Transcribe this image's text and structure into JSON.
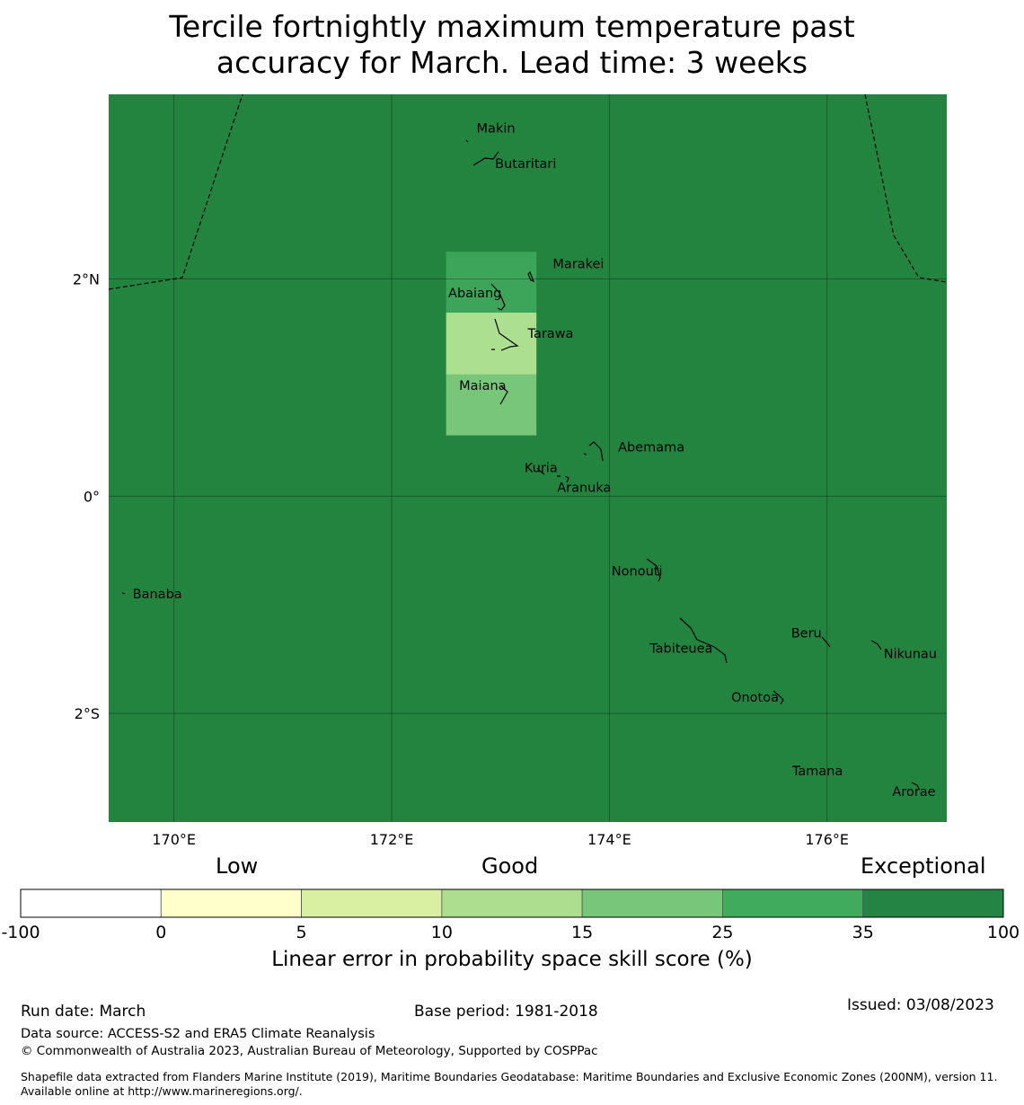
{
  "title_line1": "Tercile fortnightly maximum temperature past",
  "title_line2": "accuracy for March. Lead time: 3 weeks",
  "map": {
    "lon_range": [
      169.4,
      177.1
    ],
    "lat_range": [
      -3.0,
      3.7
    ],
    "background_color": "#23843f",
    "lat_ticks": [
      {
        "value": 2,
        "label": "2°N"
      },
      {
        "value": 0,
        "label": "0°"
      },
      {
        "value": -2,
        "label": "2°S"
      }
    ],
    "lon_ticks": [
      {
        "value": 170,
        "label": "170°E"
      },
      {
        "value": 172,
        "label": "172°E"
      },
      {
        "value": 174,
        "label": "174°E"
      },
      {
        "value": 176,
        "label": "176°E"
      }
    ],
    "skill_cells": [
      {
        "lon0": 172.5,
        "lon1": 173.33,
        "lat0": 1.69,
        "lat1": 2.25,
        "color": "#3ca55a"
      },
      {
        "lon0": 172.5,
        "lon1": 173.33,
        "lat0": 1.12,
        "lat1": 1.69,
        "color": "#addf90"
      },
      {
        "lon0": 172.5,
        "lon1": 173.33,
        "lat0": 0.56,
        "lat1": 1.12,
        "color": "#78c679"
      }
    ],
    "islands": [
      {
        "name": "Makin",
        "lon": 172.78,
        "lat": 3.35
      },
      {
        "name": "Butaritari",
        "lon": 172.95,
        "lat": 3.02
      },
      {
        "name": "Marakei",
        "lon": 173.48,
        "lat": 2.1
      },
      {
        "name": "Abaiang",
        "lon": 172.52,
        "lat": 1.83
      },
      {
        "name": "Tarawa",
        "lon": 173.25,
        "lat": 1.46
      },
      {
        "name": "Maiana",
        "lon": 172.62,
        "lat": 0.98
      },
      {
        "name": "Abemama",
        "lon": 174.08,
        "lat": 0.41
      },
      {
        "name": "Kuria",
        "lon": 173.22,
        "lat": 0.22
      },
      {
        "name": "Aranuka",
        "lon": 173.52,
        "lat": 0.04
      },
      {
        "name": "Nonouti",
        "lon": 174.02,
        "lat": -0.73
      },
      {
        "name": "Banaba",
        "lon": 169.62,
        "lat": -0.94
      },
      {
        "name": "Beru",
        "lon": 175.67,
        "lat": -1.3
      },
      {
        "name": "Tabiteuea",
        "lon": 174.37,
        "lat": -1.44
      },
      {
        "name": "Nikunau",
        "lon": 176.52,
        "lat": -1.49
      },
      {
        "name": "Onotoa",
        "lon": 175.12,
        "lat": -1.89
      },
      {
        "name": "Tamana",
        "lon": 175.68,
        "lat": -2.57
      },
      {
        "name": "Arorae",
        "lon": 176.6,
        "lat": -2.76
      }
    ]
  },
  "colorbar": {
    "category_low": "Low",
    "category_good": "Good",
    "category_exceptional": "Exceptional",
    "tick_labels": [
      "-100",
      "0",
      "5",
      "10",
      "15",
      "25",
      "35",
      "100"
    ],
    "colors": [
      "#ffffff",
      "#ffffcc",
      "#d9f0a3",
      "#addd8e",
      "#78c679",
      "#41ab5d",
      "#238443"
    ],
    "axis_title": "Linear error in probability space skill score (%)"
  },
  "footer": {
    "run_date": "Run date: March",
    "base_period": "Base period: 1981-2018",
    "issued": "Issued: 03/08/2023",
    "data_source": "Data source: ACCESS-S2 and ERA5 Climate Reanalysis",
    "copyright": "© Commonwealth of Australia 2023, Australian Bureau of Meteorology, Supported by COSPPac",
    "shapefile_note": "Shapefile data extracted from Flanders Marine Institute (2019), Maritime Boundaries Geodatabase: Maritime Boundaries and Exclusive Economic Zones (200NM), version 11. Available online at http://www.marineregions.org/."
  }
}
